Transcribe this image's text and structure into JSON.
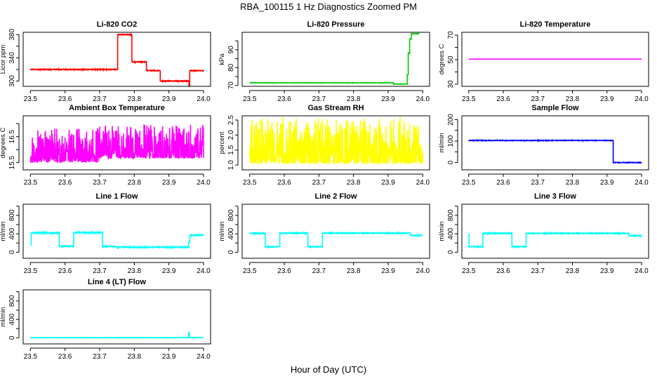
{
  "title": "RBA_100115  1 Hz Diagnostics Zoomed PM",
  "xlabel": "Hour of Day (UTC)",
  "chart_data": [
    {
      "type": "line",
      "title": "Li-820 CO2",
      "ylabel": "Licor ppm",
      "color": "#ff0000",
      "xlim": [
        23.5,
        24.0
      ],
      "ylim": [
        291,
        384
      ],
      "yticks": [
        300,
        320,
        340,
        360,
        380
      ],
      "ylabels": [
        "300",
        "",
        "340",
        "",
        "380"
      ],
      "segments": [
        [
          23.5,
          23.752,
          320
        ],
        [
          23.752,
          23.793,
          380
        ],
        [
          23.793,
          23.835,
          333
        ],
        [
          23.835,
          23.875,
          318
        ],
        [
          23.875,
          23.958,
          300
        ],
        [
          23.958,
          23.96,
          292
        ],
        [
          23.96,
          24.0,
          318
        ]
      ],
      "noise": [
        -1.5,
        1.5,
        1
      ]
    },
    {
      "type": "line",
      "title": "Li-820 Pressure",
      "ylabel": "kPa",
      "color": "#00cc00",
      "xlim": [
        23.5,
        24.0
      ],
      "ylim": [
        69.5,
        99.8
      ],
      "yticks": [
        70,
        75,
        80,
        85,
        90,
        95
      ],
      "ylabels": [
        "70",
        "",
        "80",
        "",
        "90",
        ""
      ],
      "segments": [
        [
          23.5,
          23.915,
          71.5
        ],
        [
          23.915,
          23.955,
          70.8
        ],
        [
          23.955,
          23.958,
          76
        ],
        [
          23.958,
          23.962,
          88
        ],
        [
          23.962,
          23.967,
          96
        ],
        [
          23.967,
          23.99,
          99
        ]
      ],
      "noise": [
        -0.2,
        0.2,
        1
      ]
    },
    {
      "type": "line",
      "title": "Li-820 Temperature",
      "ylabel": "degrees C",
      "color": "#ff00ff",
      "xlim": [
        23.5,
        24.0
      ],
      "ylim": [
        28.3,
        72.3
      ],
      "yticks": [
        30,
        40,
        50,
        60,
        70
      ],
      "ylabels": [
        "30",
        "",
        "50",
        "",
        "70"
      ],
      "segments": [
        [
          23.5,
          24.0,
          50.5
        ]
      ],
      "noise": [
        0,
        0,
        1
      ]
    },
    {
      "type": "line",
      "title": "Ambient Box Temperature",
      "ylabel": "degrees C",
      "color": "#ff00ff",
      "xlim": [
        23.5,
        24.0
      ],
      "ylim": [
        15.22,
        17.3
      ],
      "yticks": [
        15.5,
        16.0,
        16.5,
        17.0
      ],
      "ylabels": [
        "15.5",
        "",
        "16.5",
        ""
      ],
      "segments": [
        [
          23.5,
          23.7,
          15.82
        ],
        [
          23.7,
          24.0,
          15.97
        ]
      ],
      "noise": [
        -0.3,
        1.0,
        2.5
      ]
    },
    {
      "type": "line",
      "title": "Gas Stream RH",
      "ylabel": "percent",
      "color": "#ffff00",
      "xlim": [
        23.5,
        24.0
      ],
      "ylim": [
        0.84,
        2.64
      ],
      "yticks": [
        1.0,
        1.5,
        2.0,
        2.5
      ],
      "ylabels": [
        "1.0",
        "1.5",
        "2.0",
        "2.5"
      ],
      "segments": [
        [
          23.5,
          24.0,
          1.35
        ]
      ],
      "noise": [
        -0.3,
        1.25,
        2.5
      ]
    },
    {
      "type": "line",
      "title": "Sample Flow",
      "ylabel": "ml/min",
      "color": "#0000ff",
      "xlim": [
        23.5,
        24.0
      ],
      "ylim": [
        -34,
        218
      ],
      "yticks": [
        0,
        50,
        100,
        150,
        200
      ],
      "ylabels": [
        "0",
        "",
        "100",
        "",
        "200"
      ],
      "segments": [
        [
          23.5,
          23.918,
          103
        ],
        [
          23.918,
          24.0,
          0
        ]
      ],
      "noise": [
        -3,
        3,
        1
      ]
    },
    {
      "type": "line",
      "title": "Line 1 Flow",
      "ylabel": "ml/min",
      "color": "#00ffff",
      "xlim": [
        23.5,
        24.0
      ],
      "ylim": [
        -131,
        1041
      ],
      "yticks": [
        0,
        200,
        400,
        600,
        800,
        1000
      ],
      "ylabels": [
        "0",
        "",
        "400",
        "",
        "800",
        ""
      ],
      "segments": [
        [
          23.5,
          23.502,
          150
        ],
        [
          23.502,
          23.583,
          420
        ],
        [
          23.583,
          23.625,
          130
        ],
        [
          23.625,
          23.708,
          425
        ],
        [
          23.708,
          23.75,
          125
        ],
        [
          23.75,
          23.957,
          110
        ],
        [
          23.957,
          23.96,
          220
        ],
        [
          23.96,
          24.0,
          370
        ]
      ],
      "noise": [
        -25,
        25,
        1
      ]
    },
    {
      "type": "line",
      "title": "Line 2 Flow",
      "ylabel": "ml/min",
      "color": "#00ffff",
      "xlim": [
        23.5,
        24.0
      ],
      "ylim": [
        -131,
        1041
      ],
      "yticks": [
        0,
        200,
        400,
        600,
        800,
        1000
      ],
      "ylabels": [
        "0",
        "",
        "400",
        "",
        "800",
        ""
      ],
      "segments": [
        [
          23.5,
          23.545,
          410
        ],
        [
          23.545,
          23.587,
          120
        ],
        [
          23.587,
          23.668,
          415
        ],
        [
          23.668,
          23.71,
          120
        ],
        [
          23.71,
          23.965,
          415
        ],
        [
          23.965,
          24.0,
          365
        ]
      ],
      "noise": [
        -20,
        20,
        1
      ]
    },
    {
      "type": "line",
      "title": "Line 3 Flow",
      "ylabel": "ml/min",
      "color": "#00ffff",
      "xlim": [
        23.5,
        24.0
      ],
      "ylim": [
        -131,
        1041
      ],
      "yticks": [
        0,
        200,
        400,
        600,
        800,
        1000
      ],
      "ylabels": [
        "0",
        "",
        "400",
        "",
        "800",
        ""
      ],
      "segments": [
        [
          23.5,
          23.501,
          400
        ],
        [
          23.501,
          23.541,
          120
        ],
        [
          23.541,
          23.625,
          410
        ],
        [
          23.625,
          23.666,
          120
        ],
        [
          23.666,
          23.963,
          410
        ],
        [
          23.963,
          24.0,
          360
        ]
      ],
      "noise": [
        -20,
        20,
        1
      ]
    },
    {
      "type": "line",
      "title": "Line 4 (LT) Flow",
      "ylabel": "ml/min",
      "color": "#00ffff",
      "xlim": [
        23.5,
        24.0
      ],
      "ylim": [
        -131,
        1041
      ],
      "yticks": [
        0,
        200,
        400,
        600,
        800,
        1000
      ],
      "ylabels": [
        "0",
        "",
        "400",
        "",
        "800",
        ""
      ],
      "segments": [
        [
          23.5,
          23.957,
          5
        ],
        [
          23.957,
          23.959,
          110
        ],
        [
          23.959,
          24.0,
          5
        ]
      ],
      "noise": [
        -8,
        8,
        1
      ]
    }
  ],
  "xticks": [
    23.5,
    23.6,
    23.7,
    23.8,
    23.9,
    24.0
  ],
  "xticklabels": [
    "23.5",
    "23.6",
    "23.7",
    "23.8",
    "23.9",
    "24.0"
  ]
}
